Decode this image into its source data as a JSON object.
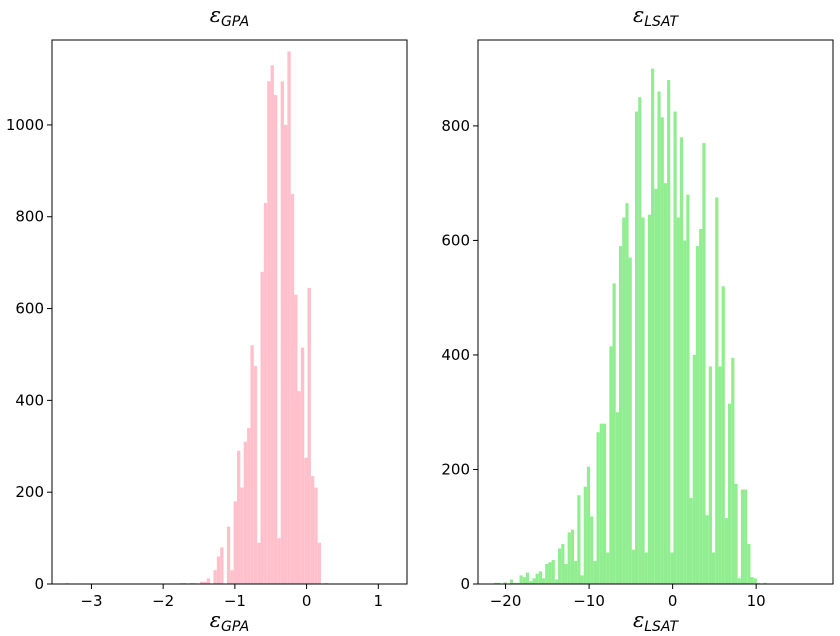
{
  "chart_data": [
    {
      "type": "histogram",
      "title_symbol": "ε",
      "title_subscript": "GPA",
      "xlabel_symbol": "ε",
      "xlabel_subscript": "GPA",
      "ylabel": "",
      "color": "#ffc0cb",
      "xlim": [
        -3.55,
        1.4
      ],
      "ylim": [
        0,
        1185
      ],
      "xticks": [
        -3,
        -2,
        -1,
        0,
        1
      ],
      "xtick_labels": [
        "−3",
        "−2",
        "−1",
        "0",
        "1"
      ],
      "yticks": [
        0,
        200,
        400,
        600,
        800,
        1000
      ],
      "ytick_labels": [
        "0",
        "200",
        "400",
        "600",
        "800",
        "1000"
      ],
      "bin_start": -3.36,
      "bin_width": 0.04685,
      "counts": [
        2,
        0,
        0,
        0,
        0,
        0,
        0,
        0,
        0,
        0,
        0,
        0,
        0,
        0,
        0,
        0,
        0,
        0,
        0,
        0,
        0,
        0,
        0,
        0,
        0,
        0,
        0,
        0,
        0,
        0,
        0,
        0,
        0,
        1,
        2,
        2,
        0,
        2,
        2,
        0,
        5,
        5,
        12,
        0,
        30,
        60,
        80,
        0,
        125,
        30,
        180,
        290,
        210,
        310,
        340,
        520,
        475,
        90,
        680,
        830,
        1095,
        1130,
        1065,
        100,
        1095,
        1000,
        1160,
        850,
        630,
        420,
        515,
        275,
        645,
        235,
        210,
        90,
        0,
        2,
        1,
        0,
        0,
        0,
        0,
        0,
        0,
        0,
        0,
        0,
        0,
        0,
        0,
        0,
        0,
        0,
        0,
        0,
        0,
        0,
        0,
        0
      ],
      "grid": false,
      "legend": "none"
    },
    {
      "type": "histogram",
      "title_symbol": "ε",
      "title_subscript": "LSAT",
      "xlabel_symbol": "ε",
      "xlabel_subscript": "LSAT",
      "ylabel": "",
      "color": "#90ee90",
      "xlim": [
        -23.3,
        19.2
      ],
      "ylim": [
        0,
        950
      ],
      "xticks": [
        -20,
        -10,
        0,
        10
      ],
      "xtick_labels": [
        "−20",
        "−10",
        "0",
        "10"
      ],
      "yticks": [
        0,
        200,
        400,
        600,
        800
      ],
      "ytick_labels": [
        "0",
        "200",
        "400",
        "600",
        "800"
      ],
      "bin_start": -21.4,
      "bin_width": 0.384,
      "counts": [
        2,
        2,
        0,
        3,
        0,
        8,
        2,
        2,
        15,
        12,
        20,
        5,
        10,
        18,
        22,
        10,
        35,
        38,
        42,
        8,
        62,
        70,
        35,
        90,
        95,
        40,
        155,
        15,
        170,
        205,
        118,
        40,
        265,
        280,
        280,
        55,
        415,
        525,
        300,
        590,
        640,
        665,
        570,
        60,
        825,
        850,
        640,
        55,
        645,
        900,
        690,
        860,
        815,
        700,
        880,
        55,
        825,
        640,
        780,
        600,
        680,
        150,
        400,
        590,
        620,
        770,
        120,
        380,
        55,
        675,
        380,
        520,
        115,
        315,
        395,
        175,
        10,
        165,
        165,
        70,
        12,
        10,
        2,
        0,
        2,
        0,
        0,
        0,
        0,
        0,
        0,
        0,
        0,
        0,
        0,
        0,
        0,
        0,
        0,
        0,
        0,
        0,
        0,
        0,
        0,
        0,
        0,
        0,
        0,
        0,
        0
      ],
      "grid": false,
      "legend": "none"
    }
  ]
}
